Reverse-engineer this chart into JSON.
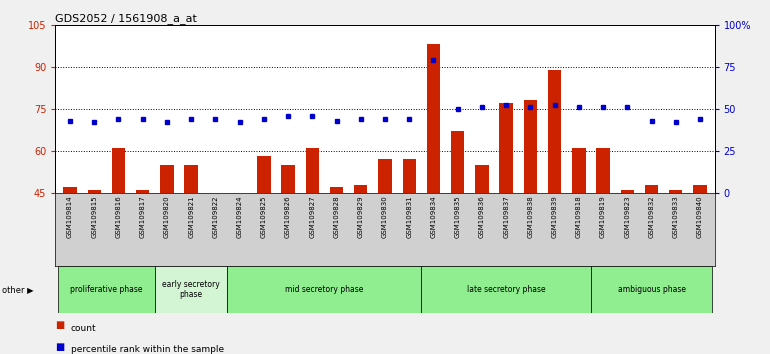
{
  "title": "GDS2052 / 1561908_a_at",
  "samples": [
    "GSM109814",
    "GSM109815",
    "GSM109816",
    "GSM109817",
    "GSM109820",
    "GSM109821",
    "GSM109822",
    "GSM109824",
    "GSM109825",
    "GSM109826",
    "GSM109827",
    "GSM109828",
    "GSM109829",
    "GSM109830",
    "GSM109831",
    "GSM109834",
    "GSM109835",
    "GSM109836",
    "GSM109837",
    "GSM109838",
    "GSM109839",
    "GSM109818",
    "GSM109819",
    "GSM109823",
    "GSM109832",
    "GSM109833",
    "GSM109840"
  ],
  "count_values": [
    47,
    46,
    61,
    46,
    55,
    55,
    45,
    44,
    58,
    55,
    61,
    47,
    48,
    57,
    57,
    98,
    67,
    55,
    77,
    78,
    89,
    61,
    61,
    46,
    48,
    46,
    48
  ],
  "percentile_values": [
    43,
    42,
    44,
    44,
    42,
    44,
    44,
    42,
    44,
    46,
    46,
    43,
    44,
    44,
    44,
    79,
    50,
    51,
    52,
    51,
    52,
    51,
    51,
    51,
    43,
    42,
    44
  ],
  "phases": [
    {
      "name": "proliferative phase",
      "start": 0,
      "end": 4,
      "color": "#90EE90"
    },
    {
      "name": "early secretory\nphase",
      "start": 4,
      "end": 7,
      "color": "#d4f5d4"
    },
    {
      "name": "mid secretory phase",
      "start": 7,
      "end": 15,
      "color": "#90EE90"
    },
    {
      "name": "late secretory phase",
      "start": 15,
      "end": 22,
      "color": "#90EE90"
    },
    {
      "name": "ambiguous phase",
      "start": 22,
      "end": 27,
      "color": "#90EE90"
    }
  ],
  "ylim_left": [
    45,
    105
  ],
  "ylim_right": [
    0,
    100
  ],
  "yticks_left": [
    45,
    60,
    75,
    90,
    105
  ],
  "yticks_right": [
    0,
    25,
    50,
    75,
    100
  ],
  "bar_color": "#CC2200",
  "dot_color": "#0000CC",
  "bg_color": "#f0f0f0",
  "plot_bg": "#ffffff",
  "label_bg": "#d0d0d0"
}
